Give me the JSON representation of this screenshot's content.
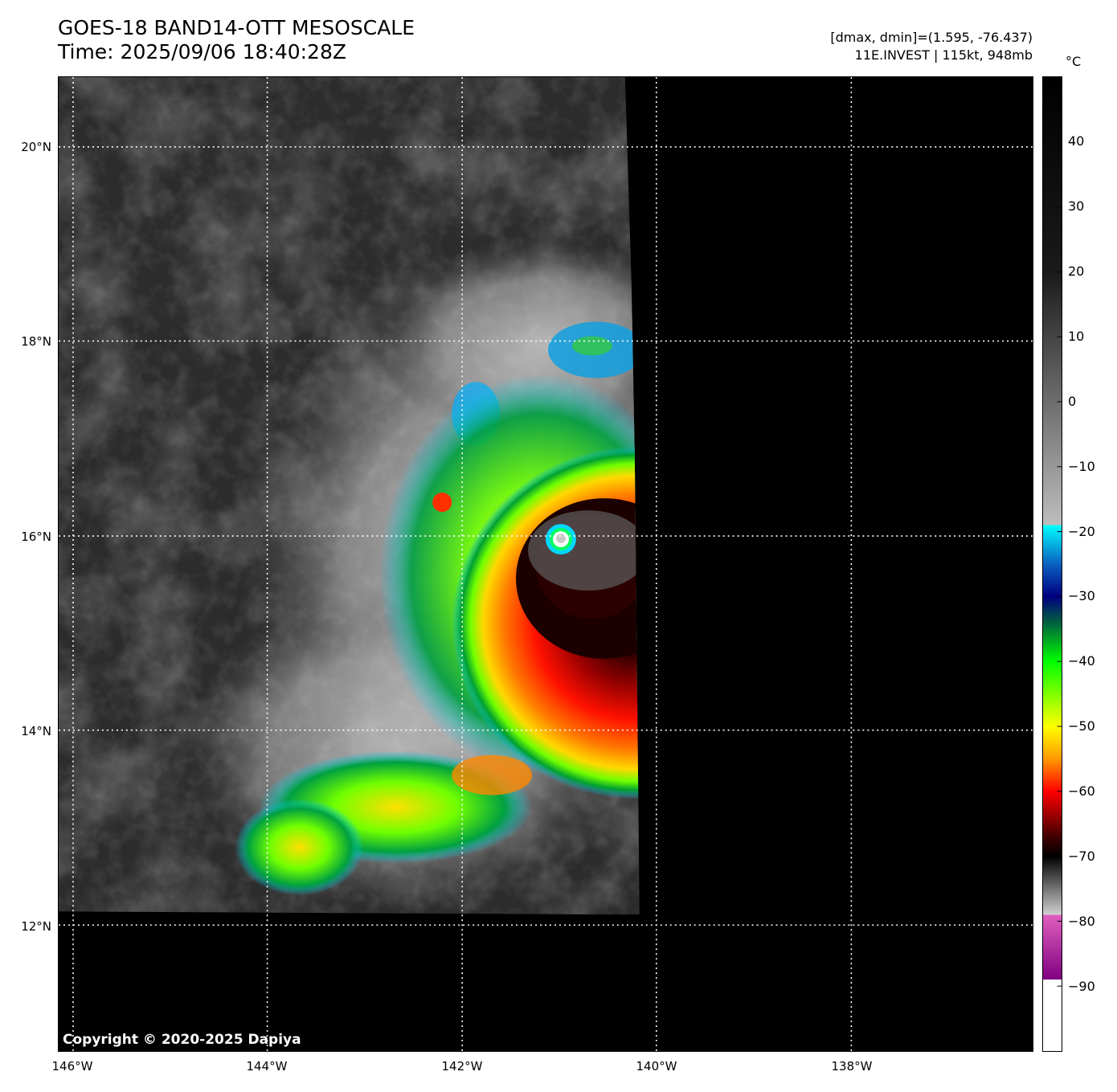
{
  "header": {
    "title_line1": "GOES-18 BAND14-OTT MESOSCALE",
    "title_line2": "Time: 2025/09/06 18:40:28Z",
    "info_line1": "[dmax, dmin]=(1.595, -76.437)",
    "info_line2": "11E.INVEST | 115kt, 948mb"
  },
  "map": {
    "lat_labels": [
      "20°N",
      "18°N",
      "16°N",
      "14°N",
      "12°N"
    ],
    "lon_labels": [
      "146°W",
      "144°W",
      "142°W",
      "140°W",
      "138°W"
    ],
    "copyright": "Copyright © 2020-2025 Dapiya",
    "no_data_color": "#000000",
    "gridlines": "dotted white"
  },
  "storm": {
    "id": "11E.INVEST",
    "center_lat": 16.0,
    "center_lon": -141.0,
    "intensity_kt": 115,
    "pressure_mb": 948
  },
  "colorbar": {
    "unit": "°C",
    "ticks": [
      "40",
      "30",
      "20",
      "10",
      "0",
      "−10",
      "−20",
      "−30",
      "−40",
      "−50",
      "−60",
      "−70",
      "−80",
      "−90"
    ],
    "range_c": [
      -100,
      50
    ],
    "stops": [
      {
        "t": 50,
        "color": "#000000"
      },
      {
        "t": 20,
        "color": "#1a1a1a"
      },
      {
        "t": -19,
        "color": "#bdbdbd"
      },
      {
        "t": -19.01,
        "color": "#00ffff"
      },
      {
        "t": -25,
        "color": "#0a60c0"
      },
      {
        "t": -30,
        "color": "#000080"
      },
      {
        "t": -34,
        "color": "#006040"
      },
      {
        "t": -40,
        "color": "#00ff00"
      },
      {
        "t": -50,
        "color": "#ffff00"
      },
      {
        "t": -55,
        "color": "#ff9900"
      },
      {
        "t": -60,
        "color": "#ff0000"
      },
      {
        "t": -67,
        "color": "#400000"
      },
      {
        "t": -70,
        "color": "#000000"
      },
      {
        "t": -79,
        "color": "#d0d0d0"
      },
      {
        "t": -79.01,
        "color": "#e060c0"
      },
      {
        "t": -89,
        "color": "#800080"
      },
      {
        "t": -89.01,
        "color": "#ffffff"
      },
      {
        "t": -100,
        "color": "#ffffff"
      }
    ]
  }
}
